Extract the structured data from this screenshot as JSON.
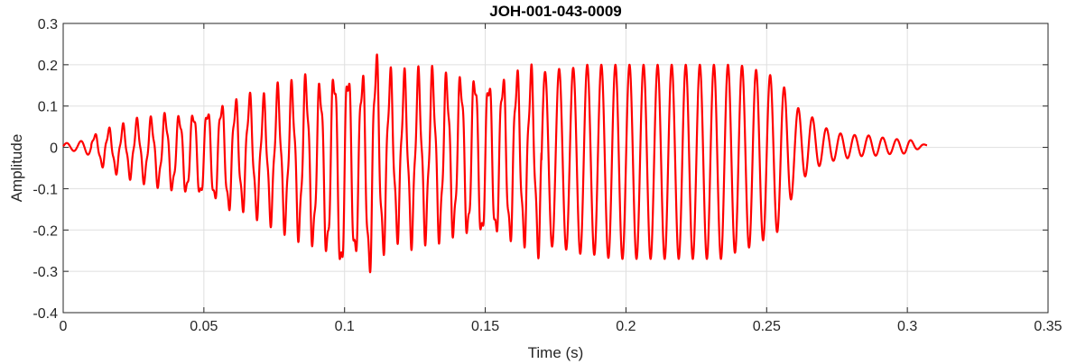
{
  "chart_data": {
    "type": "line",
    "title": "JOH-001-043-0009",
    "xlabel": "Time (s)",
    "ylabel": "Amplitude",
    "xlim": [
      0,
      0.35
    ],
    "ylim": [
      -0.4,
      0.3
    ],
    "xticks": [
      0,
      0.05,
      0.1,
      0.15,
      0.2,
      0.25,
      0.3,
      0.35
    ],
    "xtick_labels": [
      "0",
      "0.05",
      "0.1",
      "0.15",
      "0.2",
      "0.25",
      "0.3",
      "0.35"
    ],
    "yticks": [
      -0.4,
      -0.3,
      -0.2,
      -0.1,
      0,
      0.1,
      0.2,
      0.3
    ],
    "ytick_labels": [
      "-0.4",
      "-0.3",
      "-0.2",
      "-0.1",
      "0",
      "0.1",
      "0.2",
      "0.3"
    ],
    "grid": true,
    "series": [
      {
        "color": "#ff0000",
        "x": [
          0,
          0.005,
          0.01,
          0.015,
          0.02,
          0.025,
          0.03,
          0.035,
          0.04,
          0.045,
          0.05,
          0.055,
          0.06,
          0.065,
          0.07,
          0.075,
          0.08,
          0.085,
          0.09,
          0.095,
          0.1,
          0.105,
          0.11,
          0.115,
          0.12,
          0.125,
          0.13,
          0.135,
          0.14,
          0.145,
          0.15,
          0.155,
          0.16,
          0.165,
          0.17,
          0.175,
          0.18,
          0.185,
          0.19,
          0.195,
          0.2,
          0.205,
          0.21,
          0.215,
          0.22,
          0.225,
          0.23,
          0.235,
          0.24,
          0.245,
          0.25,
          0.255,
          0.26,
          0.265,
          0.27,
          0.275,
          0.28,
          0.285,
          0.29,
          0.295,
          0.3,
          0.307
        ],
        "envelope_upper": [
          0.01,
          0.012,
          0.025,
          0.04,
          0.045,
          0.06,
          0.06,
          0.075,
          0.07,
          0.08,
          0.085,
          0.1,
          0.1,
          0.12,
          0.1,
          0.13,
          0.13,
          0.16,
          0.14,
          0.17,
          0.19,
          0.15,
          0.22,
          0.17,
          0.16,
          0.16,
          0.17,
          0.16,
          0.16,
          0.17,
          0.16,
          0.16,
          0.17,
          0.17,
          0.18,
          0.19,
          0.19,
          0.2,
          0.2,
          0.2,
          0.2,
          0.2,
          0.2,
          0.2,
          0.2,
          0.2,
          0.2,
          0.2,
          0.2,
          0.19,
          0.18,
          0.16,
          0.1,
          0.08,
          0.05,
          0.035,
          0.03,
          0.03,
          0.025,
          0.02,
          0.02,
          0.005
        ],
        "envelope_lower": [
          -0.005,
          -0.01,
          -0.02,
          -0.05,
          -0.06,
          -0.07,
          -0.08,
          -0.09,
          -0.1,
          -0.11,
          -0.12,
          -0.13,
          -0.15,
          -0.14,
          -0.16,
          -0.17,
          -0.19,
          -0.21,
          -0.23,
          -0.26,
          -0.31,
          -0.25,
          -0.3,
          -0.22,
          -0.2,
          -0.22,
          -0.2,
          -0.21,
          -0.2,
          -0.21,
          -0.22,
          -0.21,
          -0.22,
          -0.22,
          -0.24,
          -0.24,
          -0.25,
          -0.26,
          -0.26,
          -0.27,
          -0.27,
          -0.27,
          -0.27,
          -0.27,
          -0.27,
          -0.27,
          -0.27,
          -0.27,
          -0.25,
          -0.24,
          -0.22,
          -0.2,
          -0.1,
          -0.06,
          -0.04,
          -0.03,
          -0.025,
          -0.02,
          -0.02,
          -0.015,
          -0.015,
          0.005
        ],
        "cycle_period_s": 0.005
      }
    ]
  }
}
